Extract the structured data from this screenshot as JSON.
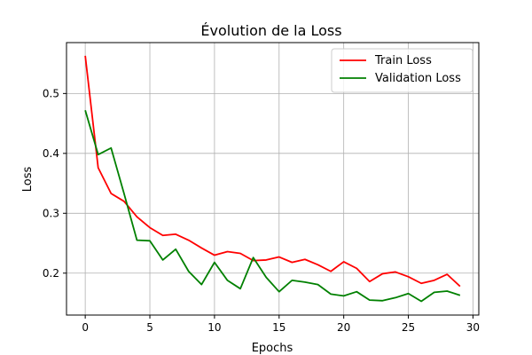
{
  "chart_data": {
    "type": "line",
    "title": "Évolution de la Loss",
    "xlabel": "Epochs",
    "ylabel": "Loss",
    "xlim": [
      -1.45,
      30.45
    ],
    "ylim": [
      0.13,
      0.585
    ],
    "xticks": [
      0,
      5,
      10,
      15,
      20,
      25,
      30
    ],
    "yticks": [
      0.2,
      0.3,
      0.4,
      0.5
    ],
    "ytick_labels": [
      "0.2",
      "0.3",
      "0.4",
      "0.5"
    ],
    "grid": true,
    "legend_position": "top-right",
    "x": [
      0,
      1,
      2,
      3,
      4,
      5,
      6,
      7,
      8,
      9,
      10,
      11,
      12,
      13,
      14,
      15,
      16,
      17,
      18,
      19,
      20,
      21,
      22,
      23,
      24,
      25,
      26,
      27,
      28,
      29
    ],
    "series": [
      {
        "name": "Train Loss",
        "color": "#ff0000",
        "values": [
          0.563,
          0.376,
          0.333,
          0.32,
          0.294,
          0.276,
          0.263,
          0.265,
          0.255,
          0.242,
          0.23,
          0.236,
          0.233,
          0.221,
          0.222,
          0.227,
          0.218,
          0.223,
          0.214,
          0.203,
          0.219,
          0.208,
          0.186,
          0.199,
          0.202,
          0.194,
          0.183,
          0.188,
          0.198,
          0.178
        ]
      },
      {
        "name": "Validation Loss",
        "color": "#008000",
        "values": [
          0.472,
          0.398,
          0.409,
          0.333,
          0.255,
          0.254,
          0.222,
          0.24,
          0.203,
          0.181,
          0.218,
          0.188,
          0.174,
          0.226,
          0.193,
          0.169,
          0.188,
          0.185,
          0.181,
          0.165,
          0.162,
          0.169,
          0.155,
          0.154,
          0.159,
          0.166,
          0.153,
          0.168,
          0.17,
          0.163
        ]
      }
    ]
  }
}
